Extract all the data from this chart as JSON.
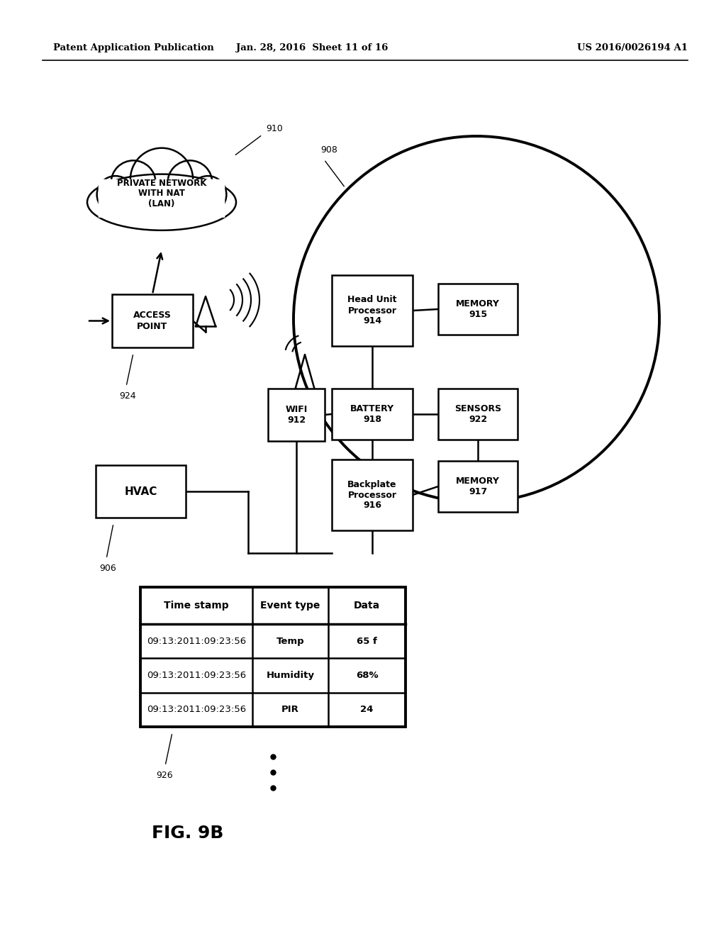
{
  "header_left": "Patent Application Publication",
  "header_mid": "Jan. 28, 2016  Sheet 11 of 16",
  "header_right": "US 2016/0026194 A1",
  "fig_label": "FIG. 9B",
  "cloud_label": "PRIVATE NETWORK\nWITH NAT\n(LAN)",
  "cloud_ref": "910",
  "circle_ref": "908",
  "access_point_label": "ACCESS\nPOINT",
  "access_point_ref": "924",
  "hvac_label": "HVAC",
  "hvac_ref": "906",
  "wifi_label": "WIFI\n912",
  "head_unit_label": "Head Unit\nProcessor\n914",
  "memory915_label": "MEMORY\n915",
  "battery_label": "BATTERY\n918",
  "sensors_label": "SENSORS\n922",
  "backplate_label": "Backplate\nProcessor\n916",
  "memory917_label": "MEMORY\n917",
  "table_ref": "926",
  "table_headers": [
    "Time stamp",
    "Event type",
    "Data"
  ],
  "table_rows": [
    [
      "09:13:2011:09:23:56",
      "Temp",
      "65 f"
    ],
    [
      "09:13:2011:09:23:56",
      "Humidity",
      "68%"
    ],
    [
      "09:13:2011:09:23:56",
      "PIR",
      "24"
    ]
  ],
  "bg_color": "#ffffff",
  "line_color": "#000000"
}
